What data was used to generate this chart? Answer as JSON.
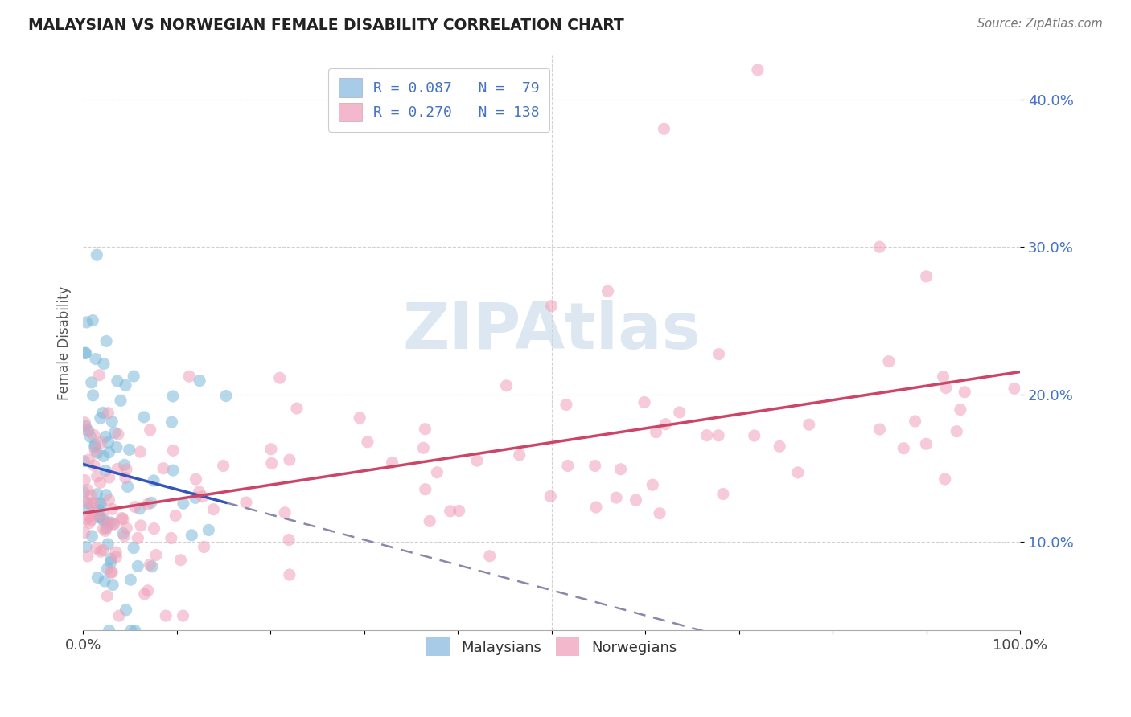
{
  "title": "MALAYSIAN VS NORWEGIAN FEMALE DISABILITY CORRELATION CHART",
  "source": "Source: ZipAtlas.com",
  "ylabel": "Female Disability",
  "xlabel": "",
  "watermark": "ZIPAtlas",
  "xlim": [
    0.0,
    1.0
  ],
  "ylim": [
    0.04,
    0.43
  ],
  "xtick_positions": [
    0.0,
    0.1,
    0.2,
    0.3,
    0.4,
    0.5,
    0.6,
    0.7,
    0.8,
    0.9,
    1.0
  ],
  "xtick_labels": [
    "0.0%",
    "",
    "",
    "",
    "",
    "",
    "",
    "",
    "",
    "",
    "100.0%"
  ],
  "ytick_positions": [
    0.1,
    0.2,
    0.3,
    0.4
  ],
  "ytick_labels": [
    "10.0%",
    "20.0%",
    "30.0%",
    "40.0%"
  ],
  "series": [
    {
      "name": "Malaysians",
      "R": 0.087,
      "N": 79,
      "dot_color": "#7ab8d9",
      "trend_color": "#3355bb",
      "legend_color": "#a8cce8"
    },
    {
      "name": "Norwegians",
      "R": 0.27,
      "N": 138,
      "dot_color": "#f0a0b8",
      "trend_color": "#cc4466",
      "legend_color": "#f4b8cc"
    }
  ],
  "background_color": "#ffffff",
  "grid_color": "#cccccc",
  "title_color": "#222222",
  "ylabel_color": "#555555",
  "legend_text_color": "#4472c4",
  "watermark_color": "#c5d8ea",
  "dashed_line_color": "#8888aa"
}
